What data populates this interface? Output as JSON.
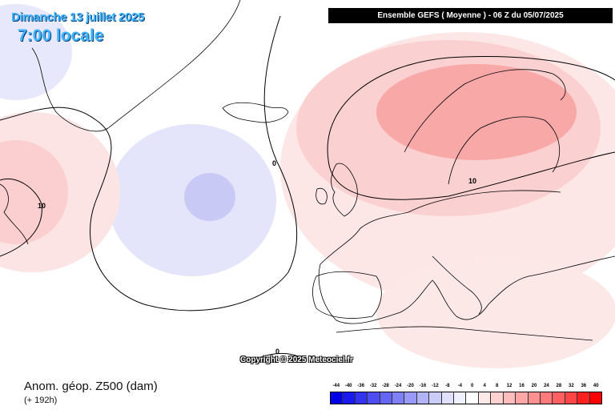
{
  "header": {
    "date": "Dimanche 13 juillet 2025",
    "time": "7:00 locale",
    "run": "Ensemble GEFS  ( Moyenne )  -  06 Z du 05/07/2025"
  },
  "map": {
    "copyright": "Copyright © 2025 Meteociel.fr",
    "contour_labels": [
      "0",
      "10",
      "10",
      "0"
    ]
  },
  "legend": {
    "parameter": "Anom. géop. Z500 (dam)",
    "lead": "(+ 192h)",
    "ticks": [
      "-44",
      "-40",
      "-36",
      "-32",
      "-28",
      "-24",
      "-20",
      "-16",
      "-12",
      "-8",
      "-4",
      "0",
      "4",
      "8",
      "12",
      "16",
      "20",
      "24",
      "28",
      "32",
      "36",
      "40"
    ],
    "colors": [
      "#0000e6",
      "#1a1aee",
      "#3333f0",
      "#4d4df2",
      "#6666f4",
      "#7f7ff6",
      "#9999f7",
      "#b3b3f9",
      "#ccccfb",
      "#e0e0fc",
      "#efefff",
      "#ffffff",
      "#ffe8e8",
      "#ffd2d2",
      "#ffbcbc",
      "#ffa6a6",
      "#ff9090",
      "#ff7a7a",
      "#ff6060",
      "#ff4646",
      "#ff2020",
      "#ff0000"
    ]
  }
}
